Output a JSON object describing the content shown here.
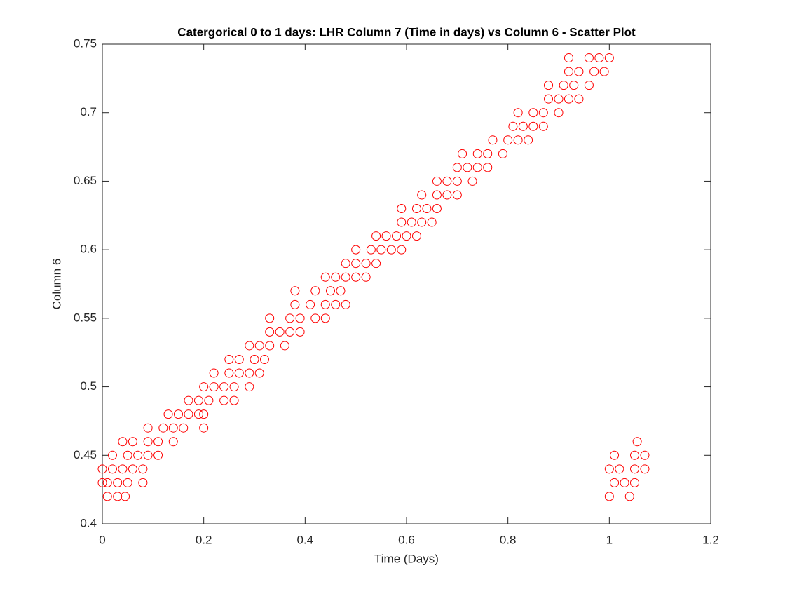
{
  "chart_data": {
    "type": "scatter",
    "title": "Catergorical 0 to 1 days: LHR Column 7 (Time in days) vs Column 6 - Scatter Plot",
    "x_label": "Time (Days)",
    "y_label": "Column 6",
    "color": "#ff0000",
    "xlim": [
      0,
      1.2
    ],
    "ylim": [
      0.4,
      0.75
    ],
    "xticks": [
      0,
      0.2,
      0.4,
      0.6,
      0.8,
      1,
      1.2
    ],
    "yticks": [
      0.4,
      0.45,
      0.5,
      0.55,
      0.6,
      0.65,
      0.7,
      0.75
    ],
    "x": [
      0.01,
      0.03,
      0.045,
      0,
      0.01,
      0.03,
      0.05,
      0.08,
      0,
      0.02,
      0.04,
      0.06,
      0.08,
      0.02,
      0.05,
      0.07,
      0.09,
      0.11,
      0.04,
      0.06,
      0.09,
      0.11,
      0.14,
      0.09,
      0.12,
      0.14,
      0.16,
      0.2,
      0.13,
      0.15,
      0.17,
      0.19,
      0.2,
      0.17,
      0.19,
      0.21,
      0.24,
      0.26,
      0.2,
      0.22,
      0.24,
      0.26,
      0.29,
      0.22,
      0.25,
      0.27,
      0.29,
      0.31,
      0.25,
      0.27,
      0.3,
      0.32,
      0.29,
      0.31,
      0.33,
      0.36,
      0.33,
      0.35,
      0.37,
      0.39,
      0.33,
      0.37,
      0.39,
      0.42,
      0.44,
      0.38,
      0.41,
      0.44,
      0.46,
      0.48,
      0.38,
      0.42,
      0.45,
      0.47,
      0.44,
      0.46,
      0.48,
      0.5,
      0.52,
      0.48,
      0.5,
      0.52,
      0.54,
      0.5,
      0.53,
      0.55,
      0.57,
      0.59,
      0.54,
      0.56,
      0.58,
      0.6,
      0.62,
      0.59,
      0.61,
      0.63,
      0.65,
      0.59,
      0.62,
      0.64,
      0.66,
      0.63,
      0.66,
      0.68,
      0.7,
      0.66,
      0.68,
      0.7,
      0.73,
      0.7,
      0.72,
      0.74,
      0.76,
      0.71,
      0.74,
      0.76,
      0.79,
      0.77,
      0.8,
      0.82,
      0.84,
      0.81,
      0.83,
      0.85,
      0.87,
      0.82,
      0.85,
      0.87,
      0.9,
      0.88,
      0.9,
      0.92,
      0.94,
      0.88,
      0.91,
      0.93,
      0.96,
      0.92,
      0.94,
      0.97,
      0.99,
      0.92,
      0.96,
      0.98,
      1.0,
      1.0,
      1.04,
      1.01,
      1.03,
      1.05,
      1.0,
      1.02,
      1.05,
      1.07,
      1.01,
      1.05,
      1.07,
      1.055
    ],
    "values": [
      0.42,
      0.42,
      0.42,
      0.43,
      0.43,
      0.43,
      0.43,
      0.43,
      0.44,
      0.44,
      0.44,
      0.44,
      0.44,
      0.45,
      0.45,
      0.45,
      0.45,
      0.45,
      0.46,
      0.46,
      0.46,
      0.46,
      0.46,
      0.47,
      0.47,
      0.47,
      0.47,
      0.47,
      0.48,
      0.48,
      0.48,
      0.48,
      0.48,
      0.49,
      0.49,
      0.49,
      0.49,
      0.49,
      0.5,
      0.5,
      0.5,
      0.5,
      0.5,
      0.51,
      0.51,
      0.51,
      0.51,
      0.51,
      0.52,
      0.52,
      0.52,
      0.52,
      0.53,
      0.53,
      0.53,
      0.53,
      0.54,
      0.54,
      0.54,
      0.54,
      0.55,
      0.55,
      0.55,
      0.55,
      0.55,
      0.56,
      0.56,
      0.56,
      0.56,
      0.56,
      0.57,
      0.57,
      0.57,
      0.57,
      0.58,
      0.58,
      0.58,
      0.58,
      0.58,
      0.59,
      0.59,
      0.59,
      0.59,
      0.6,
      0.6,
      0.6,
      0.6,
      0.6,
      0.61,
      0.61,
      0.61,
      0.61,
      0.61,
      0.62,
      0.62,
      0.62,
      0.62,
      0.63,
      0.63,
      0.63,
      0.63,
      0.64,
      0.64,
      0.64,
      0.64,
      0.65,
      0.65,
      0.65,
      0.65,
      0.66,
      0.66,
      0.66,
      0.66,
      0.67,
      0.67,
      0.67,
      0.67,
      0.68,
      0.68,
      0.68,
      0.68,
      0.69,
      0.69,
      0.69,
      0.69,
      0.7,
      0.7,
      0.7,
      0.7,
      0.71,
      0.71,
      0.71,
      0.71,
      0.72,
      0.72,
      0.72,
      0.72,
      0.73,
      0.73,
      0.73,
      0.73,
      0.74,
      0.74,
      0.74,
      0.74,
      0.42,
      0.42,
      0.43,
      0.43,
      0.43,
      0.44,
      0.44,
      0.44,
      0.44,
      0.45,
      0.45,
      0.45,
      0.46
    ]
  }
}
